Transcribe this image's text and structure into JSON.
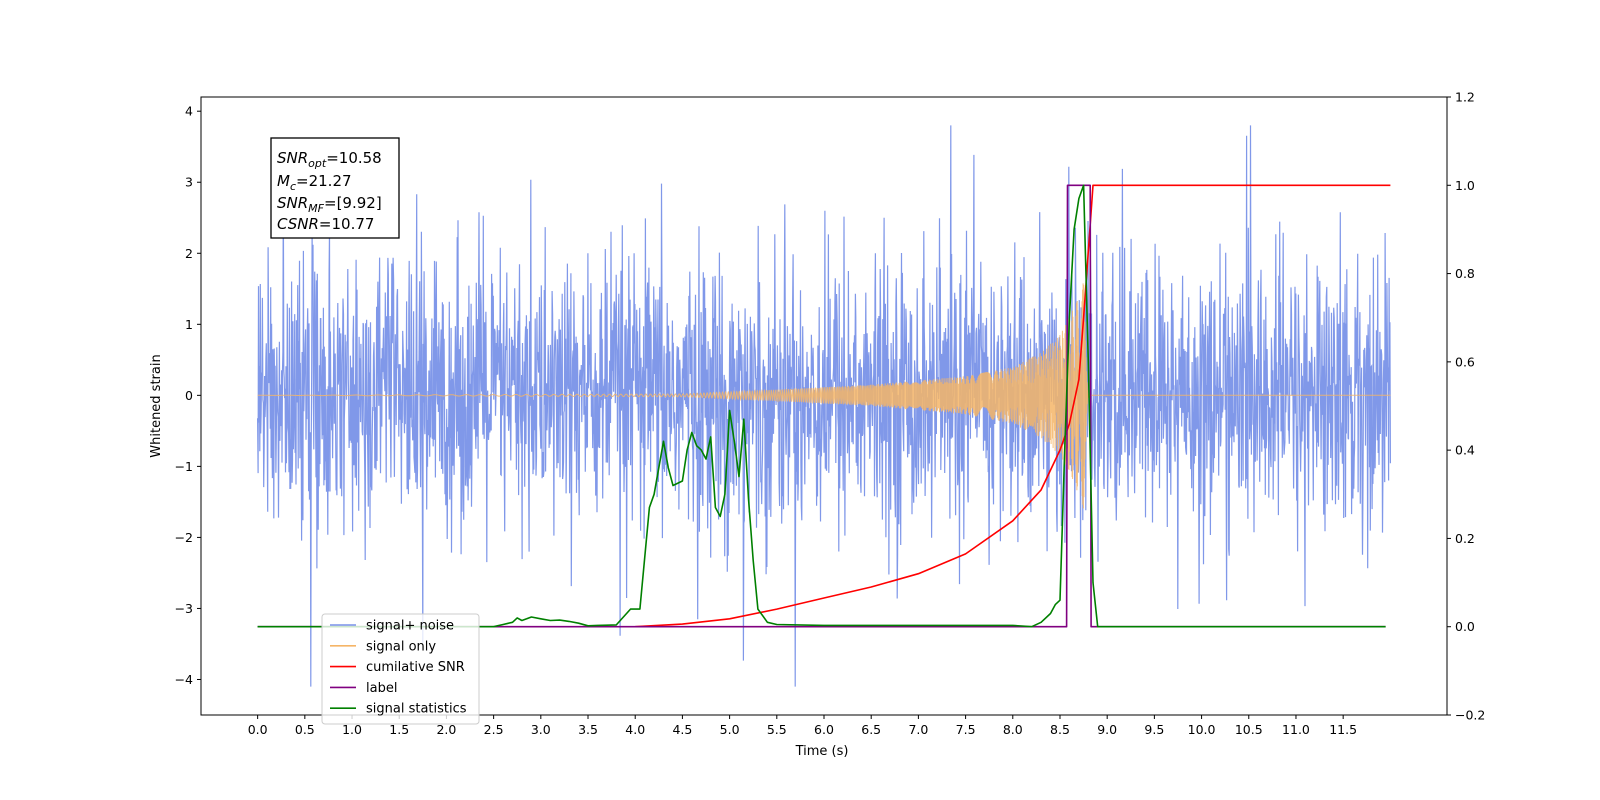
{
  "chart_data": {
    "type": "line",
    "xlabel": "Time (s)",
    "ylabel": "Whitened strain",
    "xlim": [
      -0.6,
      12.6
    ],
    "ylim": [
      -4.5,
      4.2
    ],
    "y2lim": [
      -0.2,
      1.2
    ],
    "x_ticks": [
      "0.0",
      "0.5",
      "1.0",
      "1.5",
      "2.0",
      "2.5",
      "3.0",
      "3.5",
      "4.0",
      "4.5",
      "5.0",
      "5.5",
      "6.0",
      "6.5",
      "7.0",
      "7.5",
      "8.0",
      "8.5",
      "9.0",
      "9.5",
      "10.0",
      "10.5",
      "11.0",
      "11.5"
    ],
    "y_ticks": [
      "4",
      "3",
      "2",
      "1",
      "0",
      "−1",
      "−2",
      "−3",
      "−4"
    ],
    "y2_ticks": [
      "1.2",
      "1.0",
      "0.8",
      "0.6",
      "0.4",
      "0.2",
      "0.0",
      "−0.2"
    ],
    "legend_position": "lower-left",
    "info_box": {
      "snr_opt_base": "SNR",
      "snr_opt_sub": "opt",
      "snr_opt_value": "=10.58",
      "mc_base": "M",
      "mc_sub": "c",
      "mc_value": "=21.27",
      "snr_mf_base": "SNR",
      "snr_mf_sub": "MF",
      "snr_mf_value": "=[9.92]",
      "csnr_base": "CSNR",
      "csnr_value": "=10.77"
    },
    "series": [
      {
        "name": "signal+ noise",
        "color": "#7992e8",
        "axis": "left",
        "description_of_values": "noise-dominated whitened strain spanning ~0 to 12 s, amplitude roughly ±3 with peaks near ±3.8",
        "x_range": [
          0,
          12
        ],
        "approx_std": 1.0,
        "min": -4.1,
        "max": 3.8
      },
      {
        "name": "signal only",
        "color": "#f5b567",
        "axis": "left",
        "x": [
          0,
          4.5,
          5.5,
          6.5,
          7.5,
          8.0,
          8.3,
          8.5,
          8.6,
          8.7,
          8.75,
          8.8,
          12
        ],
        "envelope": [
          0.0,
          0.02,
          0.08,
          0.15,
          0.27,
          0.4,
          0.6,
          0.85,
          1.1,
          1.4,
          1.6,
          0.0,
          0.0
        ]
      },
      {
        "name": "cumilative SNR",
        "color": "#ff0000",
        "axis": "right",
        "x": [
          4.0,
          4.5,
          5.0,
          5.5,
          6.0,
          6.5,
          7.0,
          7.5,
          8.0,
          8.3,
          8.5,
          8.6,
          8.7,
          8.75,
          8.8,
          8.85,
          12.0
        ],
        "values": [
          0.0,
          0.006,
          0.018,
          0.04,
          0.065,
          0.09,
          0.12,
          0.165,
          0.24,
          0.31,
          0.4,
          0.46,
          0.56,
          0.7,
          0.85,
          1.0,
          1.0
        ]
      },
      {
        "name": "label",
        "color": "#800080",
        "axis": "right",
        "x": [
          0.0,
          8.57,
          8.58,
          8.82,
          8.83,
          11.95
        ],
        "values": [
          0.0,
          0.0,
          1.0,
          1.0,
          0.0,
          0.0
        ]
      },
      {
        "name": "signal statistics",
        "color": "#008000",
        "axis": "right",
        "x": [
          0.0,
          2.5,
          2.6,
          2.7,
          2.75,
          2.8,
          2.85,
          2.9,
          3.0,
          3.1,
          3.2,
          3.3,
          3.4,
          3.5,
          3.6,
          3.8,
          3.95,
          4.05,
          4.15,
          4.2,
          4.3,
          4.35,
          4.4,
          4.5,
          4.55,
          4.6,
          4.65,
          4.7,
          4.75,
          4.8,
          4.85,
          4.9,
          4.95,
          5.0,
          5.05,
          5.1,
          5.15,
          5.2,
          5.25,
          5.3,
          5.4,
          5.5,
          6.0,
          8.0,
          8.2,
          8.3,
          8.4,
          8.45,
          8.5,
          8.55,
          8.6,
          8.65,
          8.7,
          8.75,
          8.8,
          8.85,
          8.9,
          11.95
        ],
        "values": [
          0.0,
          0.0,
          0.005,
          0.01,
          0.02,
          0.014,
          0.018,
          0.022,
          0.018,
          0.014,
          0.015,
          0.012,
          0.008,
          0.002,
          0.003,
          0.004,
          0.04,
          0.04,
          0.27,
          0.3,
          0.42,
          0.36,
          0.32,
          0.33,
          0.4,
          0.44,
          0.41,
          0.4,
          0.38,
          0.43,
          0.27,
          0.25,
          0.3,
          0.49,
          0.42,
          0.34,
          0.47,
          0.29,
          0.15,
          0.04,
          0.01,
          0.005,
          0.003,
          0.003,
          0.0,
          0.01,
          0.03,
          0.05,
          0.06,
          0.4,
          0.7,
          0.9,
          0.97,
          1.0,
          0.6,
          0.1,
          0.0,
          0.0
        ]
      }
    ]
  }
}
